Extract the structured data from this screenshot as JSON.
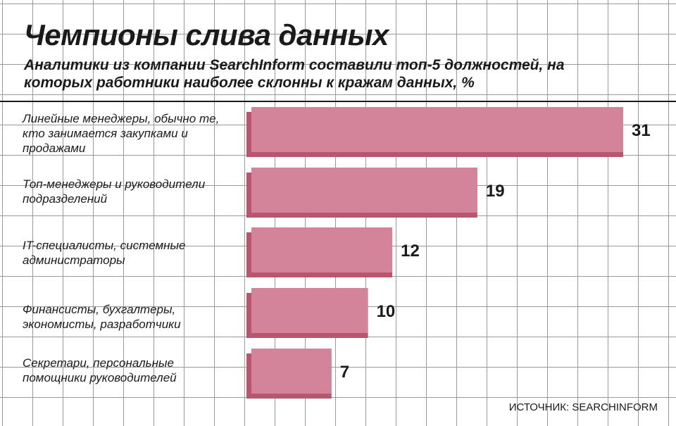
{
  "chart_data": {
    "type": "bar",
    "orientation": "horizontal",
    "title": "Чемпионы слива данных",
    "subtitle": "Аналитики из компании SearchInform составили топ-5 должностей, на которых работники наиболее склонны к кражам данных, %",
    "categories": [
      "Линейные менеджеры, обычно те, кто занимается закупками и продажами",
      "Топ-менеджеры и руководители подразделений",
      "IT-специалисты, системные администраторы",
      "Финансисты, бухгалтеры, экономисты, разработчики",
      "Секретари, персональные помощники руководителей"
    ],
    "values": [
      31,
      19,
      12,
      10,
      7
    ],
    "value_labels": [
      "31",
      "19",
      "12",
      "10",
      "7"
    ],
    "xlim": [
      0,
      31
    ],
    "grid": true,
    "legend": "none",
    "source": "ИСТОЧНИК: SEARCHINFORM",
    "colors": {
      "bar_face": "#d4849a",
      "bar_shadow": "#b9566f",
      "grid": "#9a9a9a"
    }
  }
}
